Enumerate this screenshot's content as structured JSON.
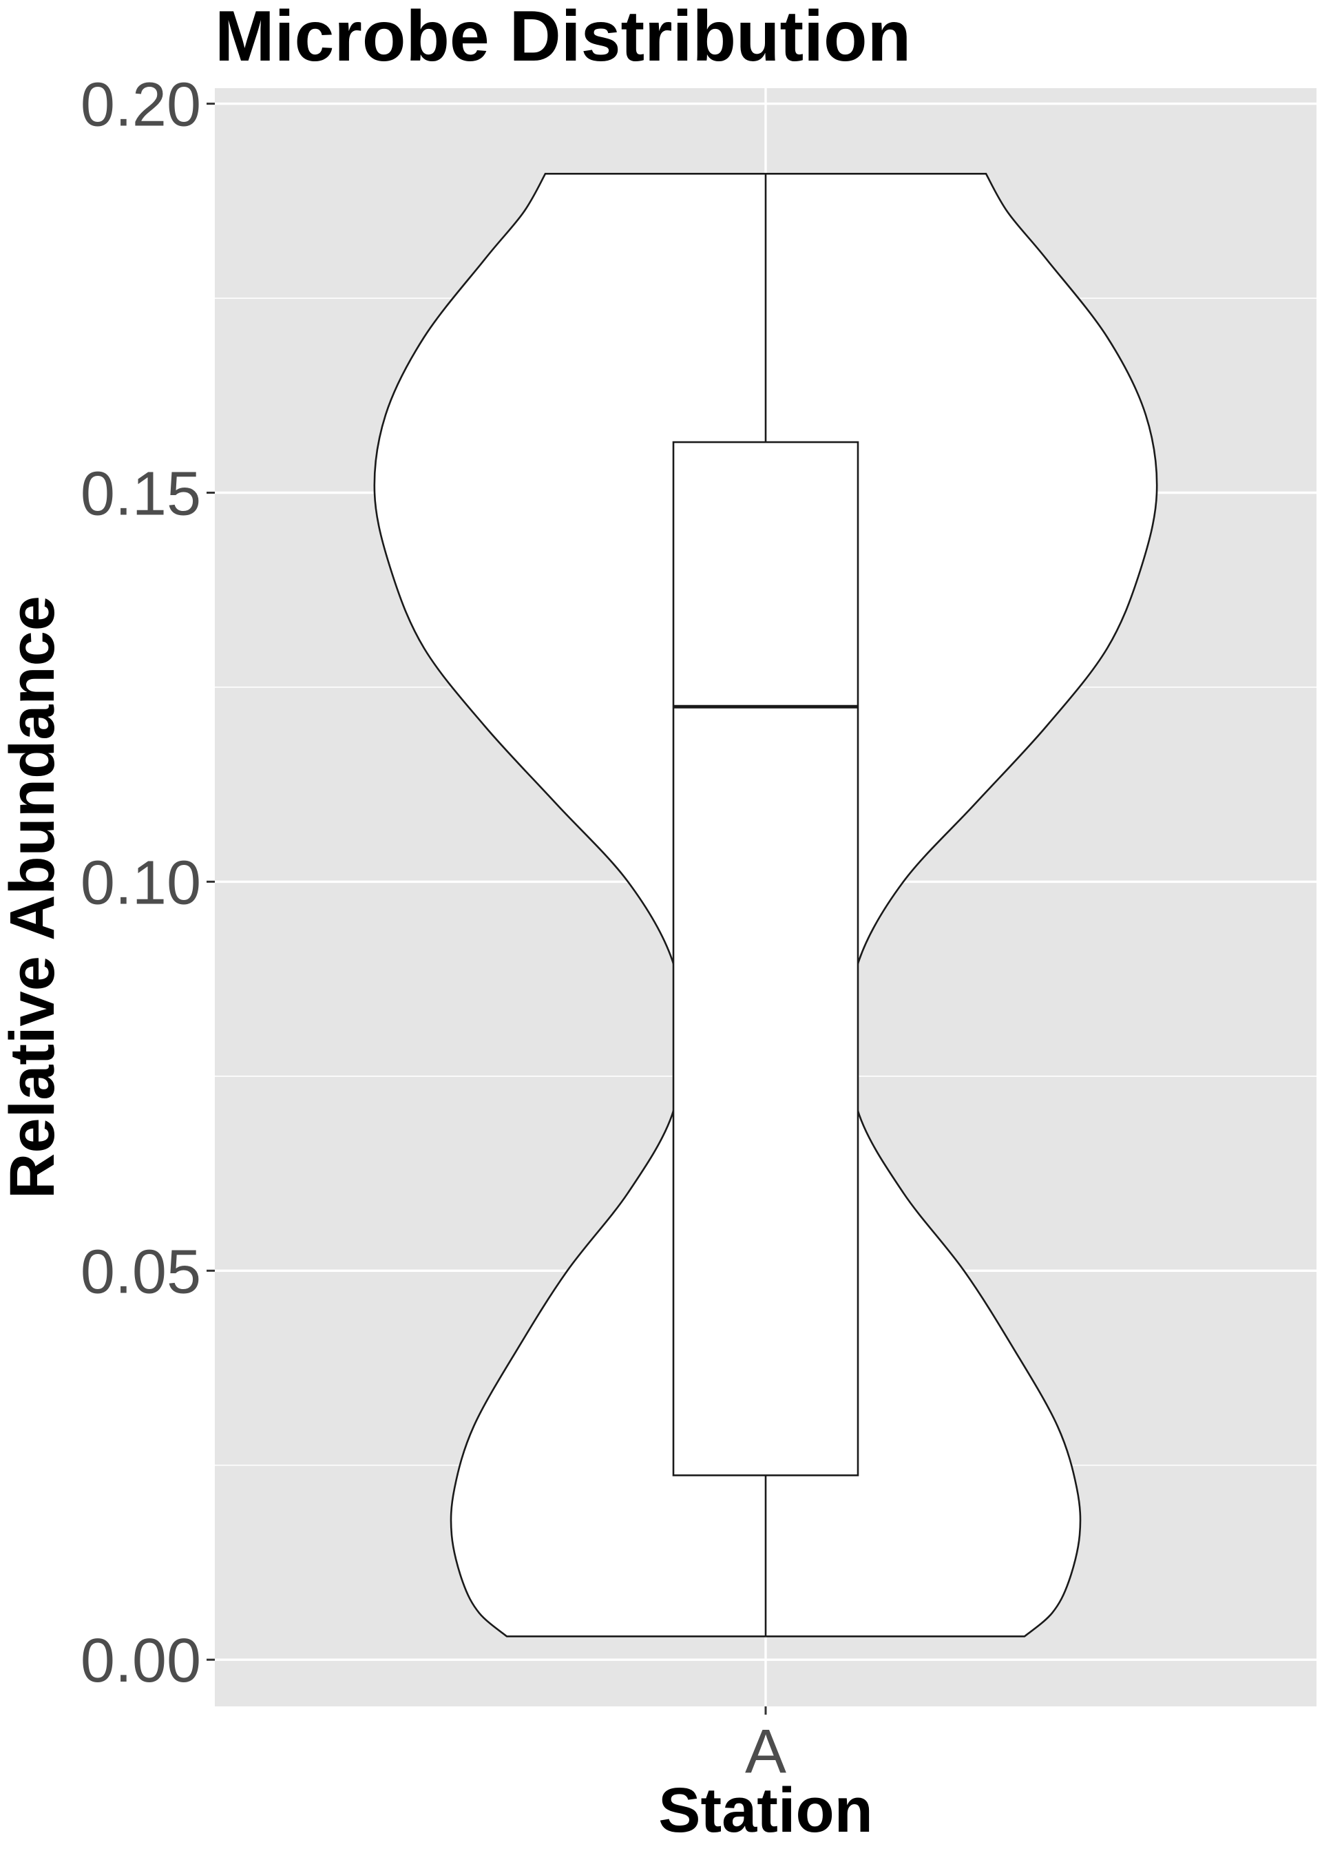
{
  "chart_data": {
    "type": "violin",
    "title": "Microbe Distribution",
    "xlabel": "Station",
    "ylabel": "Relative Abundance",
    "categories": [
      "A"
    ],
    "ylim": [
      -0.006,
      0.202
    ],
    "yticks": [
      0.0,
      0.05,
      0.1,
      0.15,
      0.2
    ],
    "ytick_labels": [
      "0.00",
      "0.05",
      "0.10",
      "0.15",
      "0.20"
    ],
    "grid": true,
    "legend": "none",
    "violin": {
      "category": "A",
      "y_min": 0.003,
      "y_max": 0.191,
      "density_profile": [
        [
          0.003,
          0.47
        ],
        [
          0.006,
          0.52
        ],
        [
          0.01,
          0.55
        ],
        [
          0.016,
          0.57
        ],
        [
          0.022,
          0.565
        ],
        [
          0.03,
          0.53
        ],
        [
          0.04,
          0.45
        ],
        [
          0.05,
          0.36
        ],
        [
          0.06,
          0.25
        ],
        [
          0.07,
          0.17
        ],
        [
          0.08,
          0.15
        ],
        [
          0.09,
          0.17
        ],
        [
          0.1,
          0.25
        ],
        [
          0.11,
          0.38
        ],
        [
          0.12,
          0.51
        ],
        [
          0.13,
          0.62
        ],
        [
          0.14,
          0.68
        ],
        [
          0.15,
          0.71
        ],
        [
          0.16,
          0.69
        ],
        [
          0.17,
          0.62
        ],
        [
          0.18,
          0.51
        ],
        [
          0.186,
          0.44
        ],
        [
          0.191,
          0.4
        ]
      ]
    },
    "boxplot": {
      "category": "A",
      "whisker_low": 0.003,
      "q1": 0.0237,
      "median": 0.1225,
      "q3": 0.1565,
      "whisker_high": 0.191
    },
    "colors": {
      "panel": "#e5e5e5",
      "grid": "#ffffff",
      "fill": "#ffffff",
      "outline": "#1a1a1a",
      "tick_text": "#4d4d4d",
      "tick_mark": "#333333"
    }
  }
}
